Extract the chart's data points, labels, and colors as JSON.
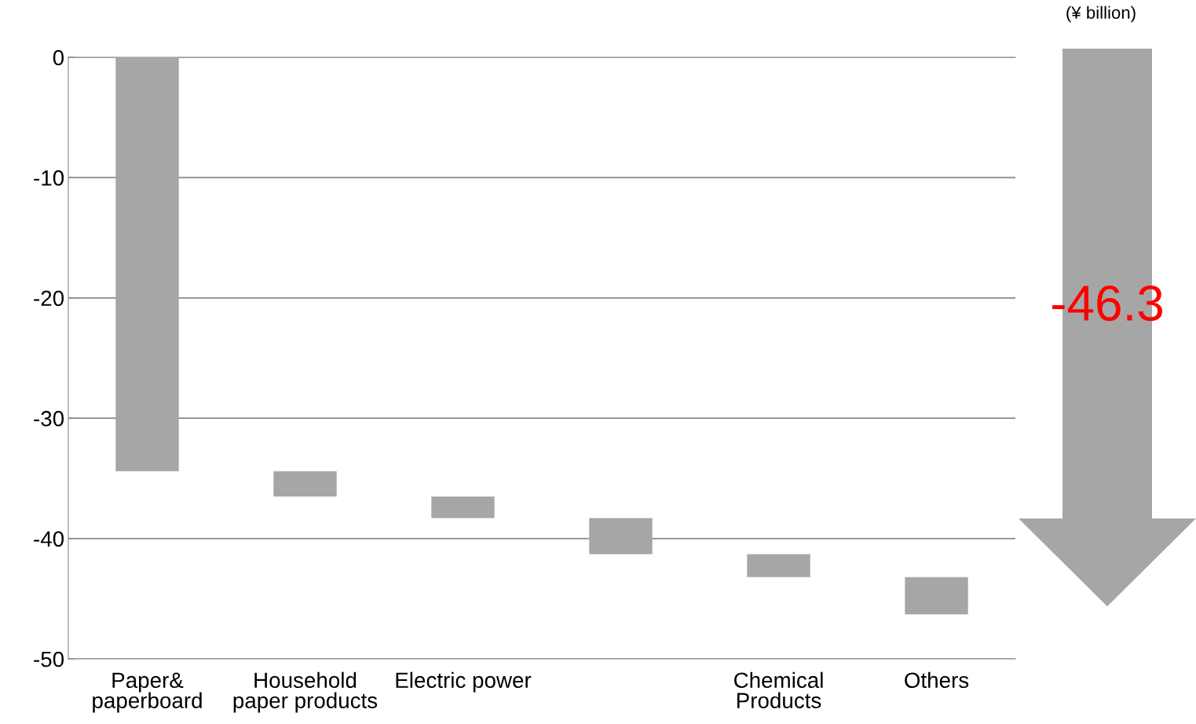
{
  "chart_data": {
    "type": "bar",
    "categories": [
      "Paper&\npaperboard",
      "Household\npaper products",
      "Electric power",
      null,
      "Chemical\nProducts",
      "Others"
    ],
    "values": [
      -34.4,
      -2.1,
      -1.8,
      -3.0,
      -1.9,
      -3.1
    ],
    "base": [
      0,
      -34.4,
      -36.5,
      -38.3,
      -41.3,
      -43.2
    ],
    "color": "#a6a6a6",
    "ylim": [
      -50,
      0
    ],
    "yticks": [
      -50,
      -40,
      -30,
      -20,
      -10,
      0
    ],
    "grid": "y",
    "annotations": [
      "(¥ billion)",
      "-46.3"
    ]
  }
}
